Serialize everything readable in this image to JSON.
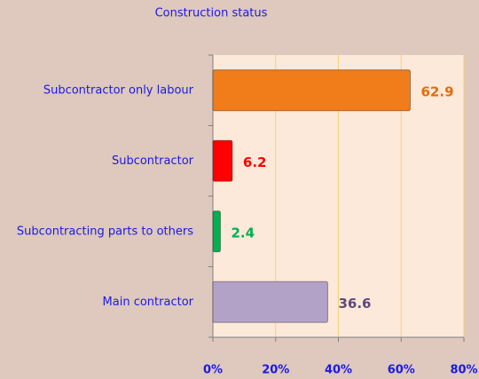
{
  "chart_data": {
    "type": "bar",
    "orientation": "horizontal",
    "title": "Construction status",
    "categories": [
      "Subcontractor only labour",
      "Subcontractor",
      "Subcontracting parts to others",
      "Main contractor"
    ],
    "values": [
      62.9,
      6.2,
      2.4,
      36.6
    ],
    "colors": [
      "#f07c1a",
      "#ff0000",
      "#00b050",
      "#b3a2c7"
    ],
    "label_colors": [
      "#e46c0a",
      "#ff0000",
      "#00b050",
      "#5f497a"
    ],
    "xlim": [
      0,
      80
    ],
    "xticks": [
      {
        "value": 0,
        "label": "0%"
      },
      {
        "value": 20,
        "label": "20%"
      },
      {
        "value": 40,
        "label": "40%"
      },
      {
        "value": 60,
        "label": "60%"
      },
      {
        "value": 80,
        "label": "80%"
      }
    ],
    "grid": true
  }
}
